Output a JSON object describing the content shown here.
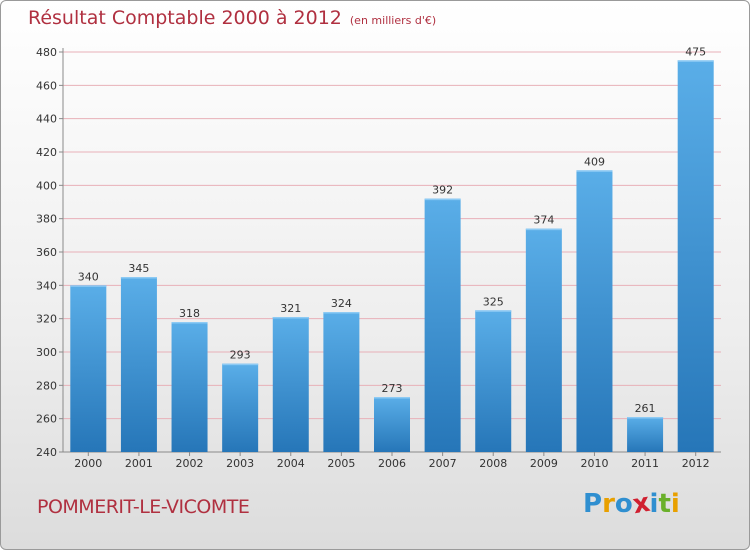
{
  "chart_data": {
    "type": "bar",
    "title": "Résultat Comptable 2000 à 2012",
    "subtitle": "(en milliers d'€)",
    "categories": [
      "2000",
      "2001",
      "2002",
      "2003",
      "2004",
      "2005",
      "2006",
      "2007",
      "2008",
      "2009",
      "2010",
      "2011",
      "2012"
    ],
    "values": [
      340,
      345,
      318,
      293,
      321,
      324,
      273,
      392,
      325,
      374,
      409,
      261,
      475
    ],
    "ylim": [
      240,
      480
    ],
    "yticks": [
      240,
      260,
      280,
      300,
      320,
      340,
      360,
      380,
      400,
      420,
      440,
      460,
      480
    ],
    "grid": true,
    "bar_color": "#3a8fd6"
  },
  "footer": {
    "commune": "POMMERIT-LE-VICOMTE",
    "logo_letters": [
      {
        "ch": "P",
        "color": "#2f8fd0"
      },
      {
        "ch": "r",
        "color": "#e8a000"
      },
      {
        "ch": "o",
        "color": "#2f8fd0"
      },
      {
        "ch": "x",
        "color": "#d02030"
      },
      {
        "ch": "i",
        "color": "#2f8fd0"
      },
      {
        "ch": "t",
        "color": "#6ab02a"
      },
      {
        "ch": "i",
        "color": "#e8a000"
      }
    ]
  },
  "colors": {
    "title": "#b03040",
    "axis": "#8a8a8a",
    "grid": "#e8b0b8"
  }
}
